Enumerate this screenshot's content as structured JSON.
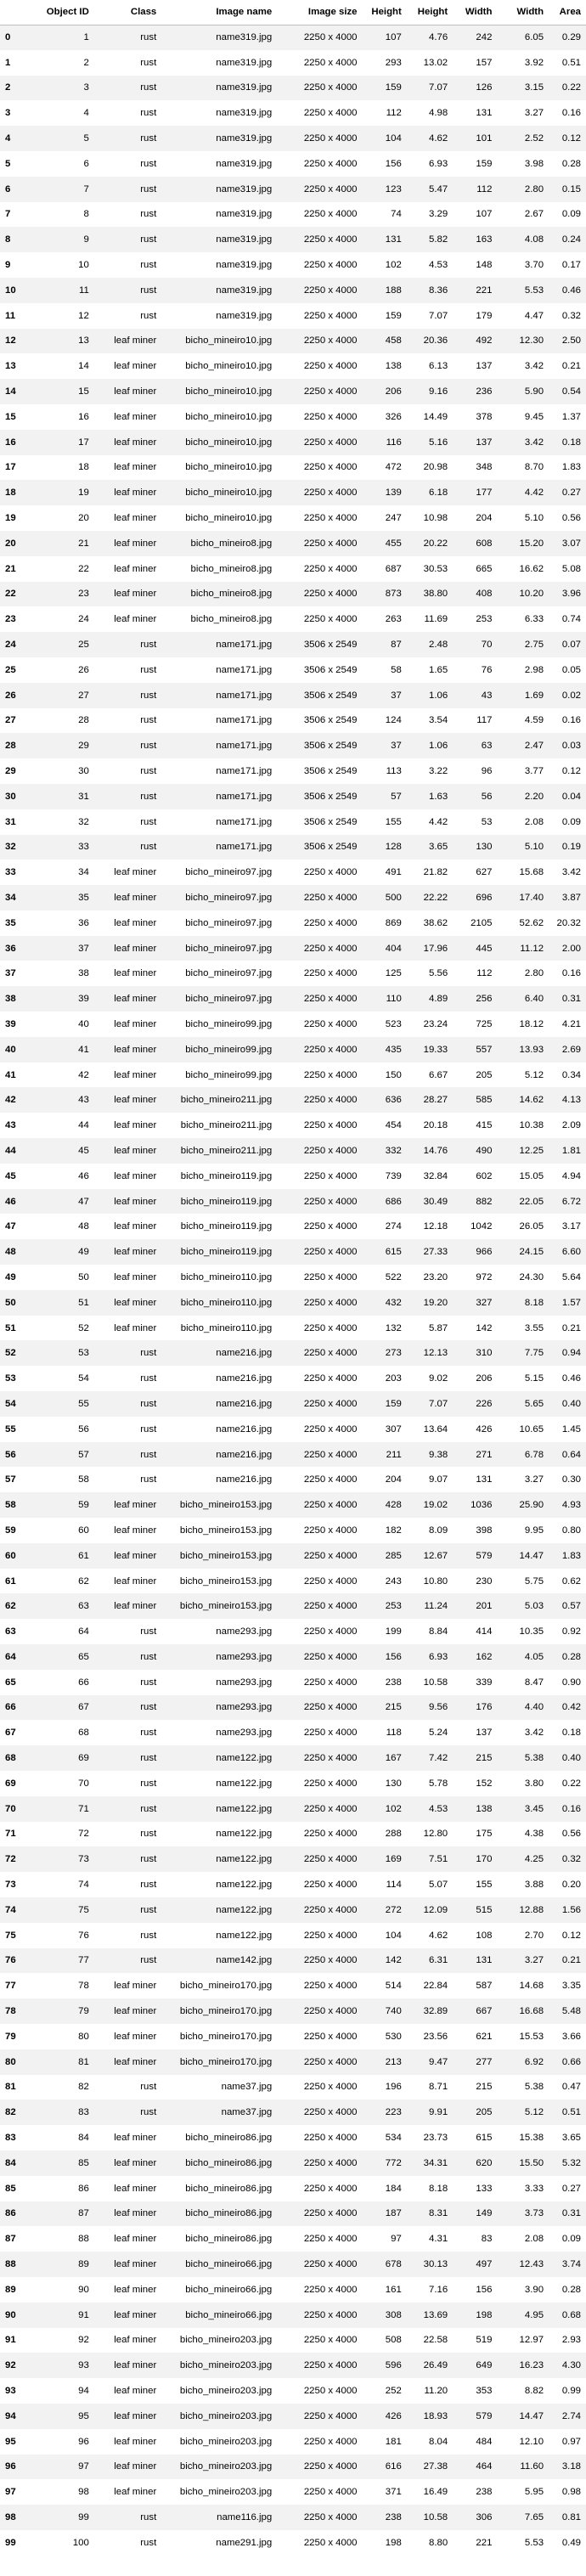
{
  "headers": [
    "",
    "Object ID",
    "Class",
    "Image name",
    "Image size",
    "Height",
    "Height",
    "Width",
    "Width",
    "Area"
  ],
  "rows": [
    [
      "0",
      "1",
      "rust",
      "name319.jpg",
      "2250 x 4000",
      "107",
      "4.76",
      "242",
      "6.05",
      "0.29"
    ],
    [
      "1",
      "2",
      "rust",
      "name319.jpg",
      "2250 x 4000",
      "293",
      "13.02",
      "157",
      "3.92",
      "0.51"
    ],
    [
      "2",
      "3",
      "rust",
      "name319.jpg",
      "2250 x 4000",
      "159",
      "7.07",
      "126",
      "3.15",
      "0.22"
    ],
    [
      "3",
      "4",
      "rust",
      "name319.jpg",
      "2250 x 4000",
      "112",
      "4.98",
      "131",
      "3.27",
      "0.16"
    ],
    [
      "4",
      "5",
      "rust",
      "name319.jpg",
      "2250 x 4000",
      "104",
      "4.62",
      "101",
      "2.52",
      "0.12"
    ],
    [
      "5",
      "6",
      "rust",
      "name319.jpg",
      "2250 x 4000",
      "156",
      "6.93",
      "159",
      "3.98",
      "0.28"
    ],
    [
      "6",
      "7",
      "rust",
      "name319.jpg",
      "2250 x 4000",
      "123",
      "5.47",
      "112",
      "2.80",
      "0.15"
    ],
    [
      "7",
      "8",
      "rust",
      "name319.jpg",
      "2250 x 4000",
      "74",
      "3.29",
      "107",
      "2.67",
      "0.09"
    ],
    [
      "8",
      "9",
      "rust",
      "name319.jpg",
      "2250 x 4000",
      "131",
      "5.82",
      "163",
      "4.08",
      "0.24"
    ],
    [
      "9",
      "10",
      "rust",
      "name319.jpg",
      "2250 x 4000",
      "102",
      "4.53",
      "148",
      "3.70",
      "0.17"
    ],
    [
      "10",
      "11",
      "rust",
      "name319.jpg",
      "2250 x 4000",
      "188",
      "8.36",
      "221",
      "5.53",
      "0.46"
    ],
    [
      "11",
      "12",
      "rust",
      "name319.jpg",
      "2250 x 4000",
      "159",
      "7.07",
      "179",
      "4.47",
      "0.32"
    ],
    [
      "12",
      "13",
      "leaf miner",
      "bicho_mineiro10.jpg",
      "2250 x 4000",
      "458",
      "20.36",
      "492",
      "12.30",
      "2.50"
    ],
    [
      "13",
      "14",
      "leaf miner",
      "bicho_mineiro10.jpg",
      "2250 x 4000",
      "138",
      "6.13",
      "137",
      "3.42",
      "0.21"
    ],
    [
      "14",
      "15",
      "leaf miner",
      "bicho_mineiro10.jpg",
      "2250 x 4000",
      "206",
      "9.16",
      "236",
      "5.90",
      "0.54"
    ],
    [
      "15",
      "16",
      "leaf miner",
      "bicho_mineiro10.jpg",
      "2250 x 4000",
      "326",
      "14.49",
      "378",
      "9.45",
      "1.37"
    ],
    [
      "16",
      "17",
      "leaf miner",
      "bicho_mineiro10.jpg",
      "2250 x 4000",
      "116",
      "5.16",
      "137",
      "3.42",
      "0.18"
    ],
    [
      "17",
      "18",
      "leaf miner",
      "bicho_mineiro10.jpg",
      "2250 x 4000",
      "472",
      "20.98",
      "348",
      "8.70",
      "1.83"
    ],
    [
      "18",
      "19",
      "leaf miner",
      "bicho_mineiro10.jpg",
      "2250 x 4000",
      "139",
      "6.18",
      "177",
      "4.42",
      "0.27"
    ],
    [
      "19",
      "20",
      "leaf miner",
      "bicho_mineiro10.jpg",
      "2250 x 4000",
      "247",
      "10.98",
      "204",
      "5.10",
      "0.56"
    ],
    [
      "20",
      "21",
      "leaf miner",
      "bicho_mineiro8.jpg",
      "2250 x 4000",
      "455",
      "20.22",
      "608",
      "15.20",
      "3.07"
    ],
    [
      "21",
      "22",
      "leaf miner",
      "bicho_mineiro8.jpg",
      "2250 x 4000",
      "687",
      "30.53",
      "665",
      "16.62",
      "5.08"
    ],
    [
      "22",
      "23",
      "leaf miner",
      "bicho_mineiro8.jpg",
      "2250 x 4000",
      "873",
      "38.80",
      "408",
      "10.20",
      "3.96"
    ],
    [
      "23",
      "24",
      "leaf miner",
      "bicho_mineiro8.jpg",
      "2250 x 4000",
      "263",
      "11.69",
      "253",
      "6.33",
      "0.74"
    ],
    [
      "24",
      "25",
      "rust",
      "name171.jpg",
      "3506 x 2549",
      "87",
      "2.48",
      "70",
      "2.75",
      "0.07"
    ],
    [
      "25",
      "26",
      "rust",
      "name171.jpg",
      "3506 x 2549",
      "58",
      "1.65",
      "76",
      "2.98",
      "0.05"
    ],
    [
      "26",
      "27",
      "rust",
      "name171.jpg",
      "3506 x 2549",
      "37",
      "1.06",
      "43",
      "1.69",
      "0.02"
    ],
    [
      "27",
      "28",
      "rust",
      "name171.jpg",
      "3506 x 2549",
      "124",
      "3.54",
      "117",
      "4.59",
      "0.16"
    ],
    [
      "28",
      "29",
      "rust",
      "name171.jpg",
      "3506 x 2549",
      "37",
      "1.06",
      "63",
      "2.47",
      "0.03"
    ],
    [
      "29",
      "30",
      "rust",
      "name171.jpg",
      "3506 x 2549",
      "113",
      "3.22",
      "96",
      "3.77",
      "0.12"
    ],
    [
      "30",
      "31",
      "rust",
      "name171.jpg",
      "3506 x 2549",
      "57",
      "1.63",
      "56",
      "2.20",
      "0.04"
    ],
    [
      "31",
      "32",
      "rust",
      "name171.jpg",
      "3506 x 2549",
      "155",
      "4.42",
      "53",
      "2.08",
      "0.09"
    ],
    [
      "32",
      "33",
      "rust",
      "name171.jpg",
      "3506 x 2549",
      "128",
      "3.65",
      "130",
      "5.10",
      "0.19"
    ],
    [
      "33",
      "34",
      "leaf miner",
      "bicho_mineiro97.jpg",
      "2250 x 4000",
      "491",
      "21.82",
      "627",
      "15.68",
      "3.42"
    ],
    [
      "34",
      "35",
      "leaf miner",
      "bicho_mineiro97.jpg",
      "2250 x 4000",
      "500",
      "22.22",
      "696",
      "17.40",
      "3.87"
    ],
    [
      "35",
      "36",
      "leaf miner",
      "bicho_mineiro97.jpg",
      "2250 x 4000",
      "869",
      "38.62",
      "2105",
      "52.62",
      "20.32"
    ],
    [
      "36",
      "37",
      "leaf miner",
      "bicho_mineiro97.jpg",
      "2250 x 4000",
      "404",
      "17.96",
      "445",
      "11.12",
      "2.00"
    ],
    [
      "37",
      "38",
      "leaf miner",
      "bicho_mineiro97.jpg",
      "2250 x 4000",
      "125",
      "5.56",
      "112",
      "2.80",
      "0.16"
    ],
    [
      "38",
      "39",
      "leaf miner",
      "bicho_mineiro97.jpg",
      "2250 x 4000",
      "110",
      "4.89",
      "256",
      "6.40",
      "0.31"
    ],
    [
      "39",
      "40",
      "leaf miner",
      "bicho_mineiro99.jpg",
      "2250 x 4000",
      "523",
      "23.24",
      "725",
      "18.12",
      "4.21"
    ],
    [
      "40",
      "41",
      "leaf miner",
      "bicho_mineiro99.jpg",
      "2250 x 4000",
      "435",
      "19.33",
      "557",
      "13.93",
      "2.69"
    ],
    [
      "41",
      "42",
      "leaf miner",
      "bicho_mineiro99.jpg",
      "2250 x 4000",
      "150",
      "6.67",
      "205",
      "5.12",
      "0.34"
    ],
    [
      "42",
      "43",
      "leaf miner",
      "bicho_mineiro211.jpg",
      "2250 x 4000",
      "636",
      "28.27",
      "585",
      "14.62",
      "4.13"
    ],
    [
      "43",
      "44",
      "leaf miner",
      "bicho_mineiro211.jpg",
      "2250 x 4000",
      "454",
      "20.18",
      "415",
      "10.38",
      "2.09"
    ],
    [
      "44",
      "45",
      "leaf miner",
      "bicho_mineiro211.jpg",
      "2250 x 4000",
      "332",
      "14.76",
      "490",
      "12.25",
      "1.81"
    ],
    [
      "45",
      "46",
      "leaf miner",
      "bicho_mineiro119.jpg",
      "2250 x 4000",
      "739",
      "32.84",
      "602",
      "15.05",
      "4.94"
    ],
    [
      "46",
      "47",
      "leaf miner",
      "bicho_mineiro119.jpg",
      "2250 x 4000",
      "686",
      "30.49",
      "882",
      "22.05",
      "6.72"
    ],
    [
      "47",
      "48",
      "leaf miner",
      "bicho_mineiro119.jpg",
      "2250 x 4000",
      "274",
      "12.18",
      "1042",
      "26.05",
      "3.17"
    ],
    [
      "48",
      "49",
      "leaf miner",
      "bicho_mineiro119.jpg",
      "2250 x 4000",
      "615",
      "27.33",
      "966",
      "24.15",
      "6.60"
    ],
    [
      "49",
      "50",
      "leaf miner",
      "bicho_mineiro110.jpg",
      "2250 x 4000",
      "522",
      "23.20",
      "972",
      "24.30",
      "5.64"
    ],
    [
      "50",
      "51",
      "leaf miner",
      "bicho_mineiro110.jpg",
      "2250 x 4000",
      "432",
      "19.20",
      "327",
      "8.18",
      "1.57"
    ],
    [
      "51",
      "52",
      "leaf miner",
      "bicho_mineiro110.jpg",
      "2250 x 4000",
      "132",
      "5.87",
      "142",
      "3.55",
      "0.21"
    ],
    [
      "52",
      "53",
      "rust",
      "name216.jpg",
      "2250 x 4000",
      "273",
      "12.13",
      "310",
      "7.75",
      "0.94"
    ],
    [
      "53",
      "54",
      "rust",
      "name216.jpg",
      "2250 x 4000",
      "203",
      "9.02",
      "206",
      "5.15",
      "0.46"
    ],
    [
      "54",
      "55",
      "rust",
      "name216.jpg",
      "2250 x 4000",
      "159",
      "7.07",
      "226",
      "5.65",
      "0.40"
    ],
    [
      "55",
      "56",
      "rust",
      "name216.jpg",
      "2250 x 4000",
      "307",
      "13.64",
      "426",
      "10.65",
      "1.45"
    ],
    [
      "56",
      "57",
      "rust",
      "name216.jpg",
      "2250 x 4000",
      "211",
      "9.38",
      "271",
      "6.78",
      "0.64"
    ],
    [
      "57",
      "58",
      "rust",
      "name216.jpg",
      "2250 x 4000",
      "204",
      "9.07",
      "131",
      "3.27",
      "0.30"
    ],
    [
      "58",
      "59",
      "leaf miner",
      "bicho_mineiro153.jpg",
      "2250 x 4000",
      "428",
      "19.02",
      "1036",
      "25.90",
      "4.93"
    ],
    [
      "59",
      "60",
      "leaf miner",
      "bicho_mineiro153.jpg",
      "2250 x 4000",
      "182",
      "8.09",
      "398",
      "9.95",
      "0.80"
    ],
    [
      "60",
      "61",
      "leaf miner",
      "bicho_mineiro153.jpg",
      "2250 x 4000",
      "285",
      "12.67",
      "579",
      "14.47",
      "1.83"
    ],
    [
      "61",
      "62",
      "leaf miner",
      "bicho_mineiro153.jpg",
      "2250 x 4000",
      "243",
      "10.80",
      "230",
      "5.75",
      "0.62"
    ],
    [
      "62",
      "63",
      "leaf miner",
      "bicho_mineiro153.jpg",
      "2250 x 4000",
      "253",
      "11.24",
      "201",
      "5.03",
      "0.57"
    ],
    [
      "63",
      "64",
      "rust",
      "name293.jpg",
      "2250 x 4000",
      "199",
      "8.84",
      "414",
      "10.35",
      "0.92"
    ],
    [
      "64",
      "65",
      "rust",
      "name293.jpg",
      "2250 x 4000",
      "156",
      "6.93",
      "162",
      "4.05",
      "0.28"
    ],
    [
      "65",
      "66",
      "rust",
      "name293.jpg",
      "2250 x 4000",
      "238",
      "10.58",
      "339",
      "8.47",
      "0.90"
    ],
    [
      "66",
      "67",
      "rust",
      "name293.jpg",
      "2250 x 4000",
      "215",
      "9.56",
      "176",
      "4.40",
      "0.42"
    ],
    [
      "67",
      "68",
      "rust",
      "name293.jpg",
      "2250 x 4000",
      "118",
      "5.24",
      "137",
      "3.42",
      "0.18"
    ],
    [
      "68",
      "69",
      "rust",
      "name122.jpg",
      "2250 x 4000",
      "167",
      "7.42",
      "215",
      "5.38",
      "0.40"
    ],
    [
      "69",
      "70",
      "rust",
      "name122.jpg",
      "2250 x 4000",
      "130",
      "5.78",
      "152",
      "3.80",
      "0.22"
    ],
    [
      "70",
      "71",
      "rust",
      "name122.jpg",
      "2250 x 4000",
      "102",
      "4.53",
      "138",
      "3.45",
      "0.16"
    ],
    [
      "71",
      "72",
      "rust",
      "name122.jpg",
      "2250 x 4000",
      "288",
      "12.80",
      "175",
      "4.38",
      "0.56"
    ],
    [
      "72",
      "73",
      "rust",
      "name122.jpg",
      "2250 x 4000",
      "169",
      "7.51",
      "170",
      "4.25",
      "0.32"
    ],
    [
      "73",
      "74",
      "rust",
      "name122.jpg",
      "2250 x 4000",
      "114",
      "5.07",
      "155",
      "3.88",
      "0.20"
    ],
    [
      "74",
      "75",
      "rust",
      "name122.jpg",
      "2250 x 4000",
      "272",
      "12.09",
      "515",
      "12.88",
      "1.56"
    ],
    [
      "75",
      "76",
      "rust",
      "name122.jpg",
      "2250 x 4000",
      "104",
      "4.62",
      "108",
      "2.70",
      "0.12"
    ],
    [
      "76",
      "77",
      "rust",
      "name142.jpg",
      "2250 x 4000",
      "142",
      "6.31",
      "131",
      "3.27",
      "0.21"
    ],
    [
      "77",
      "78",
      "leaf miner",
      "bicho_mineiro170.jpg",
      "2250 x 4000",
      "514",
      "22.84",
      "587",
      "14.68",
      "3.35"
    ],
    [
      "78",
      "79",
      "leaf miner",
      "bicho_mineiro170.jpg",
      "2250 x 4000",
      "740",
      "32.89",
      "667",
      "16.68",
      "5.48"
    ],
    [
      "79",
      "80",
      "leaf miner",
      "bicho_mineiro170.jpg",
      "2250 x 4000",
      "530",
      "23.56",
      "621",
      "15.53",
      "3.66"
    ],
    [
      "80",
      "81",
      "leaf miner",
      "bicho_mineiro170.jpg",
      "2250 x 4000",
      "213",
      "9.47",
      "277",
      "6.92",
      "0.66"
    ],
    [
      "81",
      "82",
      "rust",
      "name37.jpg",
      "2250 x 4000",
      "196",
      "8.71",
      "215",
      "5.38",
      "0.47"
    ],
    [
      "82",
      "83",
      "rust",
      "name37.jpg",
      "2250 x 4000",
      "223",
      "9.91",
      "205",
      "5.12",
      "0.51"
    ],
    [
      "83",
      "84",
      "leaf miner",
      "bicho_mineiro86.jpg",
      "2250 x 4000",
      "534",
      "23.73",
      "615",
      "15.38",
      "3.65"
    ],
    [
      "84",
      "85",
      "leaf miner",
      "bicho_mineiro86.jpg",
      "2250 x 4000",
      "772",
      "34.31",
      "620",
      "15.50",
      "5.32"
    ],
    [
      "85",
      "86",
      "leaf miner",
      "bicho_mineiro86.jpg",
      "2250 x 4000",
      "184",
      "8.18",
      "133",
      "3.33",
      "0.27"
    ],
    [
      "86",
      "87",
      "leaf miner",
      "bicho_mineiro86.jpg",
      "2250 x 4000",
      "187",
      "8.31",
      "149",
      "3.73",
      "0.31"
    ],
    [
      "87",
      "88",
      "leaf miner",
      "bicho_mineiro86.jpg",
      "2250 x 4000",
      "97",
      "4.31",
      "83",
      "2.08",
      "0.09"
    ],
    [
      "88",
      "89",
      "leaf miner",
      "bicho_mineiro66.jpg",
      "2250 x 4000",
      "678",
      "30.13",
      "497",
      "12.43",
      "3.74"
    ],
    [
      "89",
      "90",
      "leaf miner",
      "bicho_mineiro66.jpg",
      "2250 x 4000",
      "161",
      "7.16",
      "156",
      "3.90",
      "0.28"
    ],
    [
      "90",
      "91",
      "leaf miner",
      "bicho_mineiro66.jpg",
      "2250 x 4000",
      "308",
      "13.69",
      "198",
      "4.95",
      "0.68"
    ],
    [
      "91",
      "92",
      "leaf miner",
      "bicho_mineiro203.jpg",
      "2250 x 4000",
      "508",
      "22.58",
      "519",
      "12.97",
      "2.93"
    ],
    [
      "92",
      "93",
      "leaf miner",
      "bicho_mineiro203.jpg",
      "2250 x 4000",
      "596",
      "26.49",
      "649",
      "16.23",
      "4.30"
    ],
    [
      "93",
      "94",
      "leaf miner",
      "bicho_mineiro203.jpg",
      "2250 x 4000",
      "252",
      "11.20",
      "353",
      "8.82",
      "0.99"
    ],
    [
      "94",
      "95",
      "leaf miner",
      "bicho_mineiro203.jpg",
      "2250 x 4000",
      "426",
      "18.93",
      "579",
      "14.47",
      "2.74"
    ],
    [
      "95",
      "96",
      "leaf miner",
      "bicho_mineiro203.jpg",
      "2250 x 4000",
      "181",
      "8.04",
      "484",
      "12.10",
      "0.97"
    ],
    [
      "96",
      "97",
      "leaf miner",
      "bicho_mineiro203.jpg",
      "2250 x 4000",
      "616",
      "27.38",
      "464",
      "11.60",
      "3.18"
    ],
    [
      "97",
      "98",
      "leaf miner",
      "bicho_mineiro203.jpg",
      "2250 x 4000",
      "371",
      "16.49",
      "238",
      "5.95",
      "0.98"
    ],
    [
      "98",
      "99",
      "rust",
      "name116.jpg",
      "2250 x 4000",
      "238",
      "10.58",
      "306",
      "7.65",
      "0.81"
    ],
    [
      "99",
      "100",
      "rust",
      "name291.jpg",
      "2250 x 4000",
      "198",
      "8.80",
      "221",
      "5.53",
      "0.49"
    ]
  ]
}
